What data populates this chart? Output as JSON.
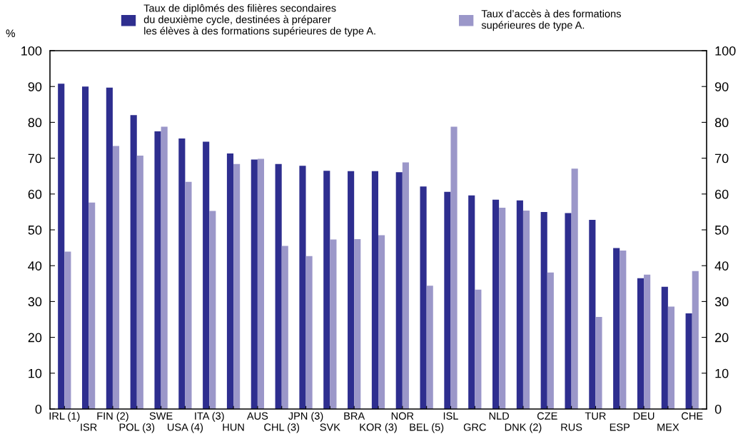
{
  "chart_data": {
    "type": "bar",
    "ylabel": "%",
    "categories": [
      "IRL (1)",
      "ISR",
      "FIN (2)",
      "POL (3)",
      "SWE",
      "USA (4)",
      "ITA (3)",
      "HUN",
      "AUS",
      "CHL (3)",
      "JPN (3)",
      "SVK",
      "BRA",
      "KOR (3)",
      "NOR",
      "BEL (5)",
      "ISL",
      "GRC",
      "NLD",
      "DNK (2)",
      "CZE",
      "RUS",
      "TUR",
      "ESP",
      "DEU",
      "MEX",
      "CHE"
    ],
    "series": [
      {
        "name": "Taux de diplômés des filières secondaires\ndu deuxième cycle, destinées à préparer\nles élèves à des formations supérieures de type A.",
        "color": "#2e2e8f",
        "values": [
          90.8,
          90,
          89.7,
          82,
          77.5,
          75.5,
          74.6,
          71.3,
          69.6,
          68.4,
          67.9,
          66.5,
          66.4,
          66.4,
          66.1,
          62.1,
          60.6,
          59.6,
          58.4,
          58.2,
          55,
          54.7,
          52.8,
          44.9,
          36.5,
          34.1,
          26.7
        ]
      },
      {
        "name": "Taux d’accès à des formations\nsupérieures de type A.",
        "color": "#9b97c9",
        "values": [
          43.9,
          57.6,
          73.4,
          70.7,
          78.8,
          63.4,
          55.3,
          68.4,
          69.8,
          45.5,
          42.7,
          47.3,
          47.4,
          48.5,
          68.8,
          34.4,
          78.8,
          33.3,
          56.2,
          55.4,
          38.1,
          67.1,
          25.7,
          44.2,
          37.5,
          28.6,
          38.5
        ]
      }
    ],
    "ylim": [
      0,
      100
    ],
    "yticks": [
      0,
      10,
      20,
      30,
      40,
      50,
      60,
      70,
      80,
      90,
      100
    ],
    "y2lim": [
      0,
      100
    ],
    "y2ticks": [
      0,
      10,
      20,
      30,
      40,
      50,
      60,
      70,
      80,
      90,
      100
    ],
    "grid": false,
    "legend": "top"
  }
}
